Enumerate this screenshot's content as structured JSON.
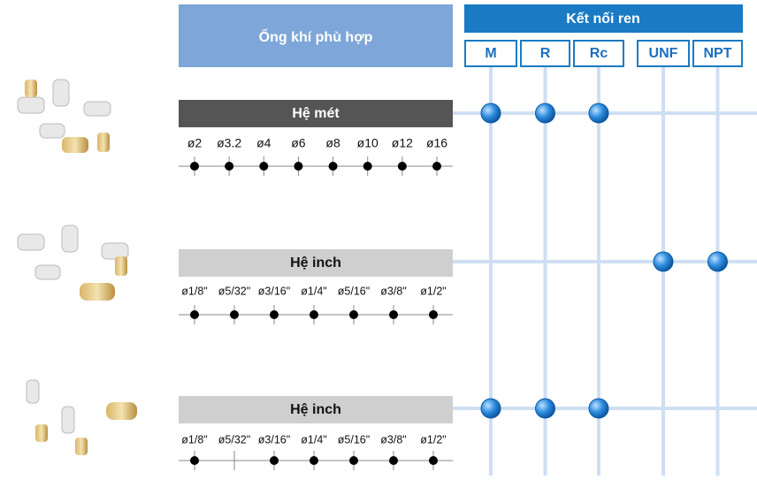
{
  "header": {
    "tube_title": "Ống khí phù hợp",
    "thread_title": "Kết nối ren",
    "threads": [
      "M",
      "R",
      "Rc",
      "UNF",
      "NPT"
    ]
  },
  "rows": [
    {
      "label": "Hệ mét",
      "sizes": [
        "ø2",
        "ø3.2",
        "ø4",
        "ø6",
        "ø8",
        "ø10",
        "ø12",
        "ø16"
      ],
      "available": [
        true,
        true,
        true,
        true,
        true,
        true,
        true,
        true
      ],
      "threads": [
        true,
        true,
        true,
        false,
        false
      ]
    },
    {
      "label": "Hệ inch",
      "sizes": [
        "ø1/8\"",
        "ø5/32\"",
        "ø3/16\"",
        "ø1/4\"",
        "ø5/16\"",
        "ø3/8\"",
        "ø1/2\""
      ],
      "available": [
        true,
        true,
        true,
        true,
        true,
        true,
        true
      ],
      "threads": [
        false,
        false,
        false,
        true,
        true
      ]
    },
    {
      "label": "Hệ inch",
      "sizes": [
        "ø1/8\"",
        "ø5/32\"",
        "ø3/16\"",
        "ø1/4\"",
        "ø5/16\"",
        "ø3/8\"",
        "ø1/2\""
      ],
      "available": [
        true,
        false,
        true,
        true,
        true,
        true,
        true
      ],
      "threads": [
        true,
        true,
        true,
        false,
        false
      ]
    }
  ]
}
